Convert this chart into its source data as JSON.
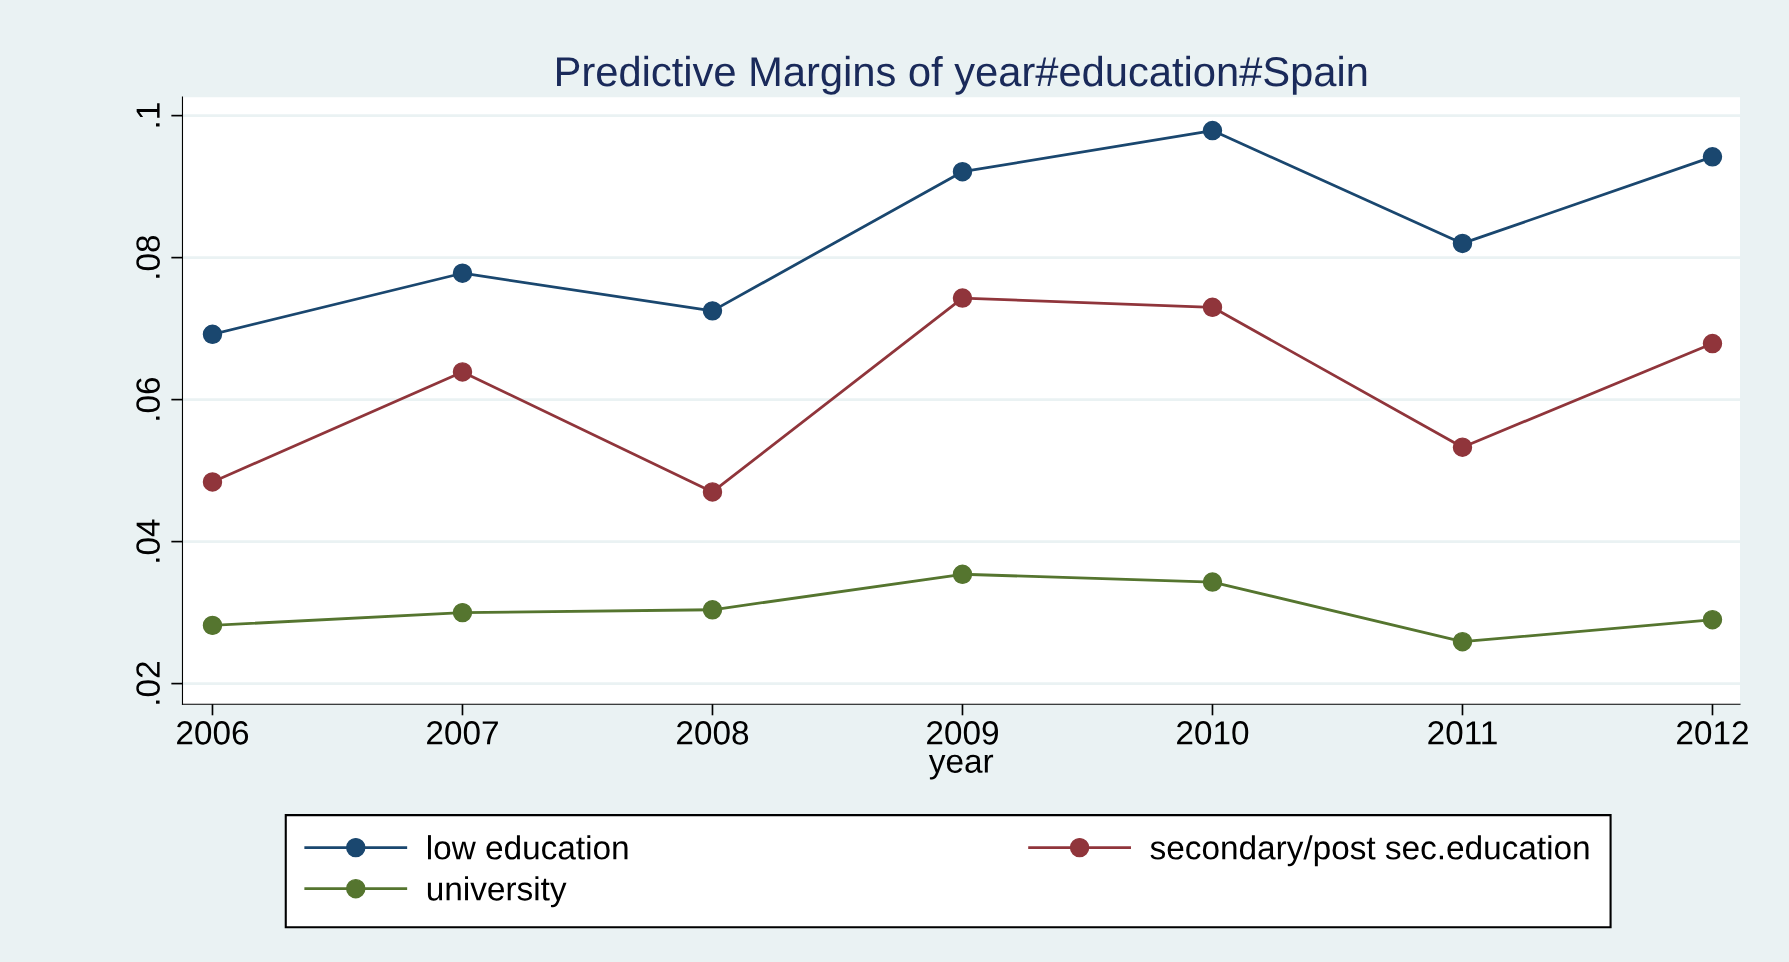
{
  "chart_data": {
    "type": "line",
    "title": "Predictive Margins of year#education#Spain",
    "xlabel": "year",
    "x": [
      2006,
      2007,
      2008,
      2009,
      2010,
      2011,
      2012
    ],
    "series": [
      {
        "name": "low education",
        "color": "#1a476f",
        "values": [
          0.0692,
          0.0778,
          0.0725,
          0.0921,
          0.0979,
          0.082,
          0.0942
        ]
      },
      {
        "name": "secondary/post sec.education",
        "color": "#90353b",
        "values": [
          0.0484,
          0.0639,
          0.047,
          0.0743,
          0.073,
          0.0533,
          0.0679
        ]
      },
      {
        "name": "university",
        "color": "#55752f",
        "values": [
          0.0282,
          0.03,
          0.0304,
          0.0354,
          0.0343,
          0.0259,
          0.029
        ]
      }
    ],
    "xlim": [
      2005.88,
      2012.11
    ],
    "xticks": [
      2006,
      2007,
      2008,
      2009,
      2010,
      2011,
      2012
    ],
    "ylim": [
      0.0171,
      0.1026
    ],
    "yticks": [
      {
        "value": 0.02,
        "label": ".02"
      },
      {
        "value": 0.04,
        "label": ".04"
      },
      {
        "value": 0.06,
        "label": ".06"
      },
      {
        "value": 0.08,
        "label": ".08"
      },
      {
        "value": 0.1,
        "label": ".1"
      }
    ],
    "grid": "y",
    "legend": "bottom",
    "marker": "circle",
    "line_style": "solid"
  }
}
